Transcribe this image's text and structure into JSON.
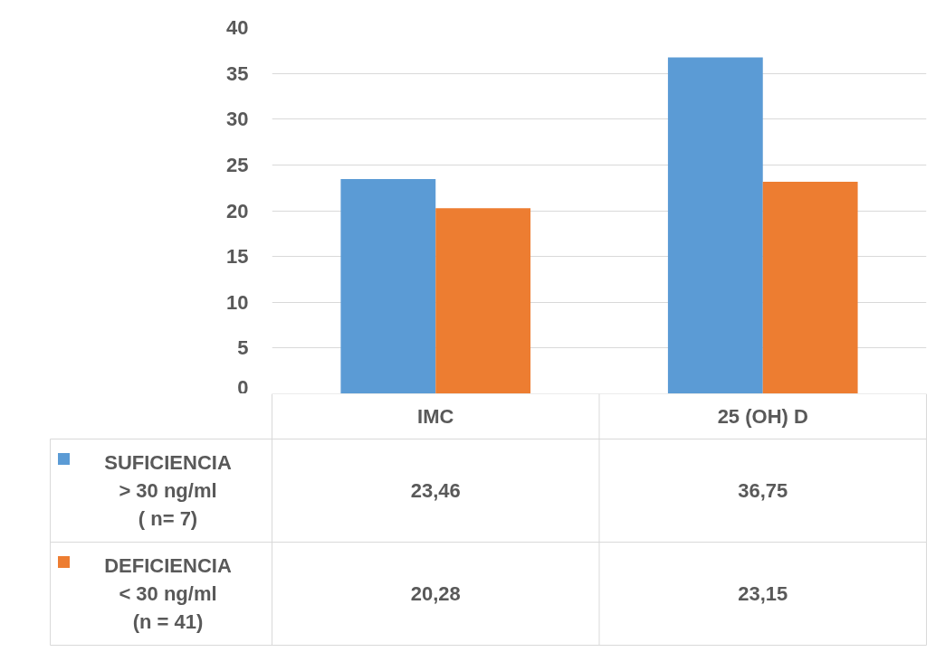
{
  "chart_data": {
    "type": "bar",
    "categories": [
      "IMC",
      "25 (OH) D"
    ],
    "series": [
      {
        "name": "SUFICIENCIA\n> 30 ng/ml\n( n= 7)",
        "color": "#5b9bd5",
        "values": [
          23.46,
          36.75
        ],
        "value_labels": [
          "23,46",
          "36,75"
        ]
      },
      {
        "name": "DEFICIENCIA\n< 30 ng/ml\n(n = 41)",
        "color": "#ed7d31",
        "values": [
          20.28,
          23.15
        ],
        "value_labels": [
          "20,28",
          "23,15"
        ]
      }
    ],
    "ylim": [
      0,
      40
    ],
    "yticks": [
      0,
      5,
      10,
      15,
      20,
      25,
      30,
      35,
      40
    ],
    "grid": "y",
    "legend": "bottom"
  }
}
